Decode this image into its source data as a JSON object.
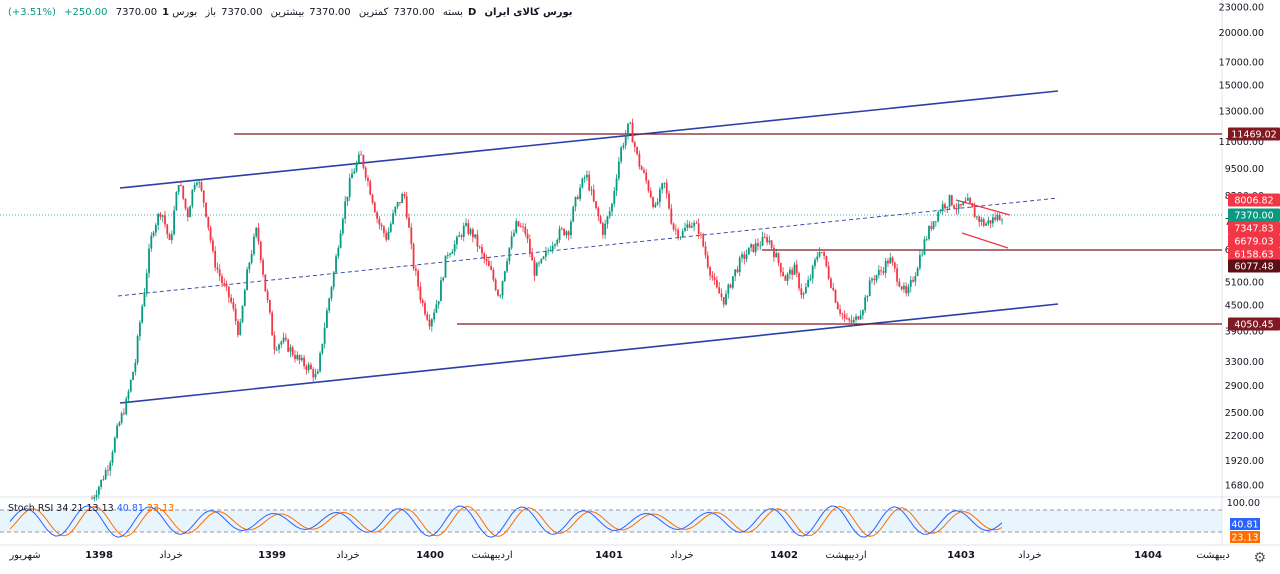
{
  "header": {
    "symbol": "بورس کالای ایران",
    "interval": "1D",
    "exchange": "بورس",
    "open_label": "باز",
    "open": "7370.00",
    "high_label": "بیشترین",
    "high": "7370.00",
    "low_label": "کمترین",
    "low": "7370.00",
    "close_label": "بسته",
    "close": "7370.00",
    "change": "+250.00",
    "change_pct": "(+3.51%)"
  },
  "rsi": {
    "name": "Stoch RSI",
    "params": "34 21 13 13",
    "k": "40.81",
    "d": "23.13",
    "top_label": "100.00",
    "k_color": "#2962ff",
    "d_color": "#ff6d00"
  },
  "chart_data": {
    "type": "candlestick",
    "scale": "log",
    "ylim": [
      1500,
      23000
    ],
    "y_ticks": [
      "23000.00",
      "20000.00",
      "17000.00",
      "15000.00",
      "13000.00",
      "11000.00",
      "9500.00",
      "8200.00",
      "7100.00",
      "6100.00",
      "5100.00",
      "4500.00",
      "3900.00",
      "3300.00",
      "2900.00",
      "2500.00",
      "2200.00",
      "1920.00",
      "1680.00"
    ],
    "x_ticks": [
      {
        "label": "شهریور",
        "bold": false
      },
      {
        "label": "1398",
        "bold": true
      },
      {
        "label": "خرداد",
        "bold": false
      },
      {
        "label": "1399",
        "bold": true
      },
      {
        "label": "خرداد",
        "bold": false
      },
      {
        "label": "1400",
        "bold": true
      },
      {
        "label": "اردیبهشت",
        "bold": false
      },
      {
        "label": "1401",
        "bold": true
      },
      {
        "label": "خرداد",
        "bold": false
      },
      {
        "label": "1402",
        "bold": true
      },
      {
        "label": "اردیبهشت",
        "bold": false
      },
      {
        "label": "1403",
        "bold": true
      },
      {
        "label": "خرداد",
        "bold": false
      },
      {
        "label": "1404",
        "bold": true
      },
      {
        "label": "دیبهشت",
        "bold": false
      }
    ],
    "price_badges": [
      {
        "value": "11469.02",
        "color": "#801922"
      },
      {
        "value": "8006.82",
        "color": "#f23645"
      },
      {
        "value": "7370.00",
        "color": "#089981"
      },
      {
        "value": "7347.83",
        "color": "#f23645"
      },
      {
        "value": "6679.03",
        "color": "#f23645"
      },
      {
        "value": "6158.63",
        "color": "#f23645"
      },
      {
        "value": "6077.48",
        "color": "#5d0f16"
      },
      {
        "value": "4050.45",
        "color": "#801922"
      }
    ],
    "horizontal_levels": [
      11469.02,
      6077.48,
      4050.45
    ],
    "channel_color": "#2b3fa8",
    "level_color": "#801922",
    "up_color": "#089981",
    "down_color": "#f23645",
    "price_path": [
      1560,
      1700,
      1900,
      2300,
      2650,
      3300,
      4800,
      6800,
      7600,
      6200,
      8900,
      7300,
      9200,
      7800,
      5800,
      5100,
      4600,
      3800,
      5500,
      6800,
      4900,
      3600,
      3700,
      3500,
      3300,
      3200,
      3000,
      4200,
      5500,
      7500,
      9200,
      10200,
      8600,
      7100,
      6500,
      7600,
      8300,
      5700,
      4600,
      4100,
      4700,
      6000,
      6300,
      6900,
      6600,
      5900,
      5400,
      4700,
      6000,
      7000,
      6700,
      5400,
      5700,
      6300,
      6700,
      6800,
      8200,
      9200,
      7700,
      6700,
      7800,
      10500,
      12100,
      9900,
      8800,
      7600,
      8800,
      6900,
      6600,
      7100,
      6800,
      5700,
      4900,
      4600,
      5300,
      5800,
      6100,
      6300,
      6500,
      5800,
      5200,
      5500,
      4700,
      5300,
      6200,
      5300,
      4500,
      4100,
      4100,
      4500,
      5200,
      5400,
      5800,
      5200,
      4700,
      5400,
      6300,
      7100,
      7700,
      8000,
      7600,
      7900,
      7300,
      7000,
      7200,
      7370
    ],
    "stoch_rsi": {
      "k_last": 40.81,
      "d_last": 23.13,
      "range": [
        0,
        100
      ]
    }
  }
}
